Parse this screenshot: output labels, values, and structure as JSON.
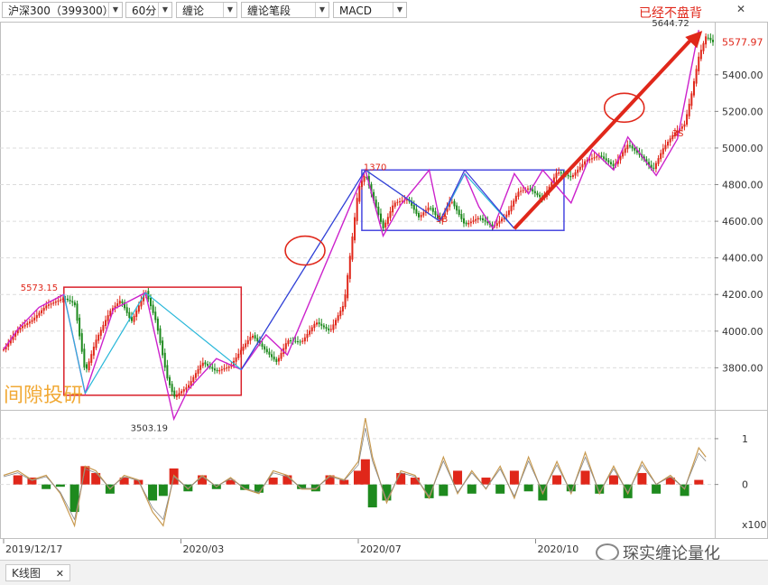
{
  "toolbar": {
    "symbol": "沪深300（399300）",
    "period": "60分",
    "indicator1": "缠论",
    "indicator2": "缠论笔段",
    "indicator3": "MACD",
    "dropdown_glyph": "▼"
  },
  "annotation_top": "已经不盘背",
  "close_glyph": "✕",
  "watermark": "间隙投研",
  "logo_text": "琛实缠论量化",
  "tab": {
    "label": "K线图",
    "close": "✕"
  },
  "colors": {
    "up": "#e0271a",
    "down": "#1e8a1e",
    "stroke_pen": "#3a3ad8",
    "segment": "#27b7d9",
    "price": "#cc22cc",
    "macd_line": "#c89a50",
    "box_red": "#d9202a",
    "box_blue": "#4848e0",
    "annotation": "#e0271a"
  },
  "chart_data": [
    {
      "type": "line",
      "name": "price",
      "y_axis": {
        "ticks": [
          3800,
          4000,
          4200,
          4400,
          4600,
          4800,
          5000,
          5200,
          5400
        ],
        "tick_labels": [
          "3800.00",
          "4000.00",
          "4200.00",
          "4400.00",
          "4600.00",
          "4800.00",
          "5000.00",
          "5200.00",
          "5400.00"
        ],
        "range": [
          3580,
          5680
        ],
        "grid": true
      },
      "x_axis": {
        "tick_labels": [
          "2019/12/17",
          "2020/03",
          "2020/07",
          "2020/10"
        ],
        "tick_t": [
          0.0,
          0.25,
          0.5,
          0.75
        ]
      },
      "last_price_label": "5577.97",
      "annotations": [
        {
          "text": "5644.72",
          "t": 0.975,
          "y": 5644.72
        },
        {
          "text": "3503.19",
          "t": 0.24,
          "y": 3503.19
        },
        {
          "text": "1370",
          "t": 0.51,
          "y": 4860
        },
        {
          "text": "3B",
          "t": 0.612,
          "y": 4575
        },
        {
          "text": "3S",
          "t": 0.945,
          "y": 5045
        },
        {
          "text": "5573.15",
          "t": 0.085,
          "y": 4200
        }
      ],
      "price": {
        "t": [
          0.0,
          0.02,
          0.04,
          0.06,
          0.085,
          0.1,
          0.115,
          0.13,
          0.15,
          0.165,
          0.18,
          0.2,
          0.215,
          0.23,
          0.24,
          0.26,
          0.28,
          0.3,
          0.32,
          0.335,
          0.35,
          0.37,
          0.385,
          0.4,
          0.42,
          0.44,
          0.46,
          0.48,
          0.5,
          0.51,
          0.52,
          0.535,
          0.55,
          0.57,
          0.585,
          0.6,
          0.615,
          0.63,
          0.65,
          0.67,
          0.69,
          0.71,
          0.725,
          0.74,
          0.76,
          0.78,
          0.8,
          0.82,
          0.84,
          0.86,
          0.88,
          0.9,
          0.915,
          0.93,
          0.945,
          0.96,
          0.97,
          0.98,
          0.99,
          1.0
        ],
        "y": [
          3900,
          4010,
          4060,
          4140,
          4180,
          4150,
          3770,
          3950,
          4110,
          4170,
          4050,
          4220,
          4050,
          3750,
          3640,
          3700,
          3830,
          3780,
          3810,
          3900,
          3980,
          3890,
          3830,
          3950,
          3940,
          4050,
          4000,
          4150,
          4780,
          4860,
          4730,
          4560,
          4700,
          4720,
          4620,
          4680,
          4600,
          4720,
          4580,
          4620,
          4570,
          4640,
          4760,
          4780,
          4720,
          4870,
          4840,
          4930,
          4960,
          4900,
          5020,
          4950,
          4880,
          5000,
          5080,
          5130,
          5300,
          5500,
          5610,
          5578
        ]
      },
      "boxes": [
        {
          "color": "red",
          "t0": 0.085,
          "t1": 0.335,
          "y0": 3650,
          "y1": 4240
        },
        {
          "color": "blue",
          "t0": 0.505,
          "t1": 0.79,
          "y0": 4550,
          "y1": 4880
        }
      ],
      "pen_points": {
        "t": [
          0.0,
          0.02,
          0.05,
          0.085,
          0.115,
          0.155,
          0.2,
          0.24,
          0.26,
          0.3,
          0.335,
          0.37,
          0.4,
          0.51,
          0.535,
          0.56,
          0.6,
          0.615,
          0.65,
          0.67,
          0.69,
          0.72,
          0.74,
          0.76,
          0.8,
          0.83,
          0.86,
          0.88,
          0.92,
          0.95,
          0.98
        ],
        "y": [
          3900,
          4010,
          4130,
          4200,
          3660,
          4120,
          4210,
          3520,
          3680,
          3850,
          3790,
          3980,
          3870,
          4880,
          4520,
          4690,
          4880,
          4600,
          4860,
          4680,
          4560,
          4860,
          4750,
          4880,
          4700,
          4990,
          4880,
          5060,
          4850,
          5050,
          5644
        ]
      },
      "segments": [
        {
          "t0": 0.085,
          "y0": 4200,
          "t1": 0.115,
          "y1": 3660
        },
        {
          "t0": 0.115,
          "y0": 3660,
          "t1": 0.2,
          "y1": 4210
        },
        {
          "t0": 0.2,
          "y0": 4210,
          "t1": 0.335,
          "y1": 3790
        },
        {
          "t0": 0.335,
          "y0": 3790,
          "t1": 0.51,
          "y1": 4880
        },
        {
          "t0": 0.51,
          "y0": 4880,
          "t1": 0.615,
          "y1": 4600
        },
        {
          "t0": 0.615,
          "y0": 4600,
          "t1": 0.65,
          "y1": 4860
        },
        {
          "t0": 0.65,
          "y0": 4860,
          "t1": 0.72,
          "y1": 4560
        }
      ],
      "pen_up": [
        {
          "t0": 0.335,
          "y0": 3790,
          "t1": 0.51,
          "y1": 4880
        },
        {
          "t0": 0.51,
          "y0": 4880,
          "t1": 0.615,
          "y1": 4600
        },
        {
          "t0": 0.615,
          "y0": 4600,
          "t1": 0.65,
          "y1": 4880
        },
        {
          "t0": 0.65,
          "y0": 4880,
          "t1": 0.72,
          "y1": 4560
        }
      ],
      "trend_arrow": {
        "t0": 0.72,
        "y0": 4560,
        "t1": 0.985,
        "y1": 5640
      },
      "circles": [
        {
          "t": 0.425,
          "y": 4440
        },
        {
          "t": 0.875,
          "y": 5220
        }
      ]
    },
    {
      "type": "bar",
      "name": "MACD",
      "y_axis": {
        "ticks": [
          1,
          0
        ],
        "tick_labels": [
          "1",
          "0"
        ],
        "unit_label": "x100",
        "range": [
          -1.15,
          1.55
        ]
      },
      "bars": {
        "t": [
          0.02,
          0.04,
          0.06,
          0.08,
          0.1,
          0.115,
          0.13,
          0.15,
          0.17,
          0.19,
          0.21,
          0.225,
          0.24,
          0.26,
          0.28,
          0.3,
          0.32,
          0.34,
          0.36,
          0.38,
          0.4,
          0.42,
          0.44,
          0.46,
          0.48,
          0.5,
          0.51,
          0.52,
          0.54,
          0.56,
          0.58,
          0.6,
          0.62,
          0.64,
          0.66,
          0.68,
          0.7,
          0.72,
          0.74,
          0.76,
          0.78,
          0.8,
          0.82,
          0.84,
          0.86,
          0.88,
          0.9,
          0.92,
          0.94,
          0.96,
          0.98
        ],
        "v": [
          0.2,
          0.15,
          -0.1,
          -0.05,
          -0.6,
          0.4,
          0.25,
          -0.2,
          0.15,
          0.1,
          -0.35,
          -0.25,
          0.35,
          -0.15,
          0.2,
          -0.1,
          0.1,
          -0.12,
          -0.18,
          0.15,
          0.2,
          -0.1,
          -0.15,
          0.2,
          0.1,
          0.3,
          0.55,
          -0.5,
          -0.35,
          0.25,
          0.15,
          -0.3,
          -0.25,
          0.3,
          -0.2,
          0.15,
          -0.2,
          0.3,
          -0.15,
          -0.35,
          0.2,
          -0.15,
          0.3,
          -0.2,
          0.2,
          -0.3,
          0.25,
          -0.2,
          0.15,
          -0.25,
          0.1
        ]
      },
      "dif": {
        "t": [
          0.0,
          0.02,
          0.04,
          0.06,
          0.08,
          0.1,
          0.115,
          0.13,
          0.15,
          0.17,
          0.19,
          0.21,
          0.225,
          0.24,
          0.26,
          0.28,
          0.3,
          0.32,
          0.34,
          0.36,
          0.38,
          0.4,
          0.42,
          0.44,
          0.46,
          0.48,
          0.5,
          0.51,
          0.52,
          0.54,
          0.56,
          0.58,
          0.6,
          0.62,
          0.64,
          0.66,
          0.68,
          0.7,
          0.72,
          0.74,
          0.76,
          0.78,
          0.8,
          0.82,
          0.84,
          0.86,
          0.88,
          0.9,
          0.92,
          0.94,
          0.96,
          0.98,
          0.99
        ],
        "y": [
          0.2,
          0.3,
          0.1,
          0.2,
          -0.2,
          -0.9,
          0.4,
          0.3,
          -0.1,
          0.2,
          0.1,
          -0.6,
          -0.9,
          0.2,
          -0.1,
          0.2,
          -0.05,
          0.15,
          -0.1,
          -0.2,
          0.3,
          0.2,
          -0.1,
          -0.1,
          0.2,
          0.1,
          0.5,
          1.45,
          0.6,
          -0.4,
          0.3,
          0.2,
          -0.3,
          0.6,
          -0.2,
          0.3,
          -0.1,
          0.4,
          -0.3,
          0.6,
          -0.2,
          0.5,
          -0.2,
          0.7,
          -0.2,
          0.4,
          -0.2,
          0.5,
          0.0,
          0.2,
          -0.1,
          0.8,
          0.6
        ]
      }
    }
  ]
}
